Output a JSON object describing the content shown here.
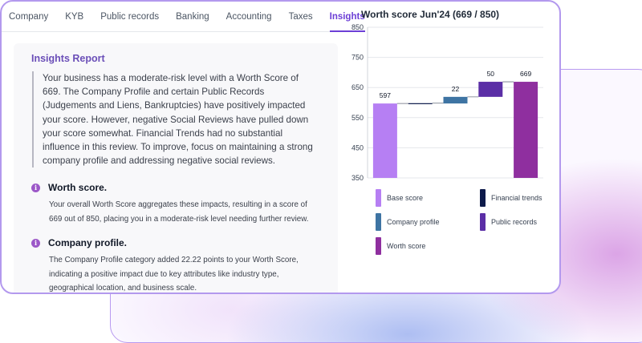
{
  "tabs": [
    {
      "label": "Company"
    },
    {
      "label": "KYB"
    },
    {
      "label": "Public records"
    },
    {
      "label": "Banking"
    },
    {
      "label": "Accounting"
    },
    {
      "label": "Taxes"
    },
    {
      "label": "Insights"
    }
  ],
  "active_tab": "Insights",
  "report": {
    "title": "Insights Report",
    "summary": "Your business has a moderate-risk level with a Worth Score of 669. The Company Profile and certain Public Records (Judgements and Liens, Bankruptcies) have positively impacted your score. However, negative Social Reviews have pulled down your score somewhat. Financial Trends had no substantial influence in this review. To improve, focus on maintaining a strong company profile and addressing negative social reviews.",
    "insights": [
      {
        "icon": "info-icon",
        "title": "Worth score.",
        "body": "Your overall Worth Score aggregates these impacts, resulting in a score of 669 out of 850, placing you in a moderate-risk level needing further review."
      },
      {
        "icon": "info-icon",
        "title": "Company profile.",
        "body": "The Company Profile category added 22.22 points to your Worth Score, indicating a positive impact due to key attributes like industry type, geographical location, and business scale."
      }
    ]
  },
  "chart_data": {
    "type": "bar",
    "subtype": "waterfall",
    "title": "Worth score Jun'24 (669 / 850)",
    "ylim": [
      350,
      850
    ],
    "yticks": [
      350,
      450,
      550,
      650,
      750,
      850
    ],
    "grid": true,
    "legend_position": "bottom",
    "bars": [
      {
        "name": "Base score",
        "start": 350,
        "end": 597,
        "label": "597",
        "color": "#b67ff3"
      },
      {
        "name": "Financial trends",
        "start": 597,
        "end": 598,
        "label": "",
        "color": "#0d1a4a"
      },
      {
        "name": "Company profile",
        "start": 597,
        "end": 619,
        "label": "22",
        "color": "#3e74a3"
      },
      {
        "name": "Public records",
        "start": 619,
        "end": 669,
        "label": "50",
        "color": "#5b2ea6"
      },
      {
        "name": "Worth score",
        "start": 350,
        "end": 669,
        "label": "669",
        "color": "#8f2f9f"
      }
    ],
    "legend": [
      {
        "name": "Base score",
        "color": "#b67ff3"
      },
      {
        "name": "Financial trends",
        "color": "#0d1a4a"
      },
      {
        "name": "Company profile",
        "color": "#3e74a3"
      },
      {
        "name": "Public records",
        "color": "#5b2ea6"
      },
      {
        "name": "Worth score",
        "color": "#8f2f9f"
      }
    ]
  },
  "colors": {
    "accent": "#6c3fd6",
    "card_border": "#b399ee",
    "report_title": "#6b4fb8"
  }
}
